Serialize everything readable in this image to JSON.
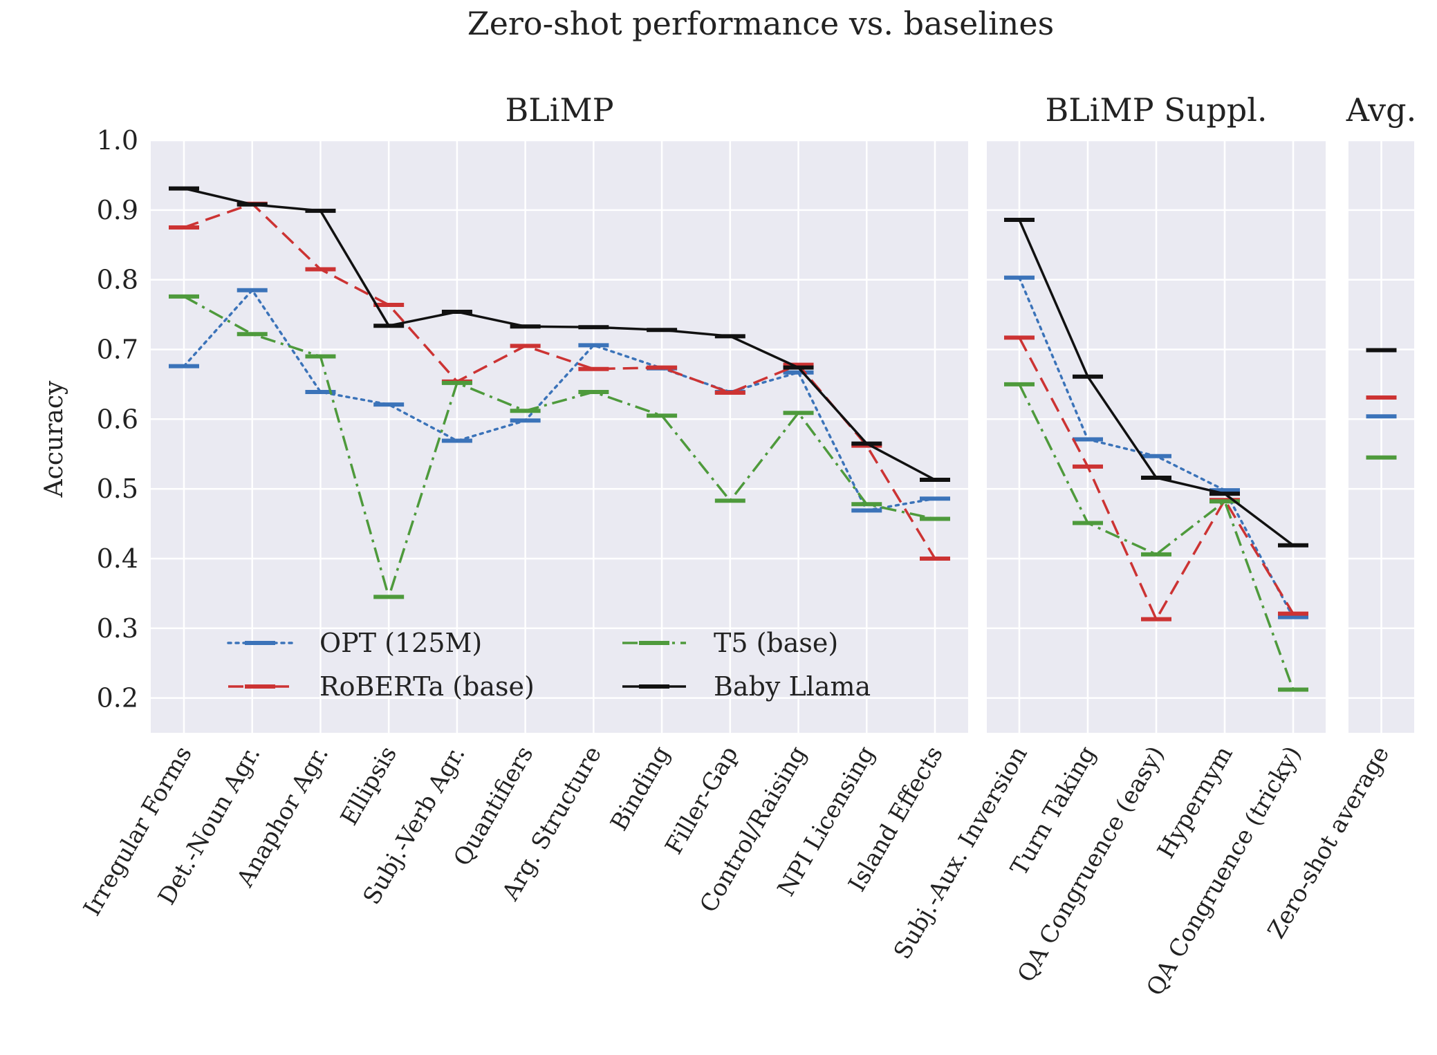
{
  "chart_data": {
    "type": "line",
    "title": "Zero-shot performance vs. baselines",
    "ylabel": "Accuracy",
    "ylim": [
      0.15,
      1.0
    ],
    "yticks": [
      "1.0",
      "0.9",
      "0.8",
      "0.7",
      "0.6",
      "0.5",
      "0.4",
      "0.3",
      "0.2"
    ],
    "legend": {
      "placement": "lower-left",
      "entries": [
        "OPT (125M)",
        "RoBERTa (base)",
        "T5 (base)",
        "Baby Llama"
      ]
    },
    "series_styles": [
      {
        "name": "OPT (125M)",
        "color": "#3b73b9",
        "dash": "dotted"
      },
      {
        "name": "RoBERTa (base)",
        "color": "#cc3333",
        "dash": "dashed"
      },
      {
        "name": "T5 (base)",
        "color": "#4e9a3c",
        "dash": "dashdot"
      },
      {
        "name": "Baby Llama",
        "color": "#111111",
        "dash": "solid"
      }
    ],
    "panels": [
      {
        "title": "BLiMP",
        "categories": [
          "Irregular Forms",
          "Det.-Noun Agr.",
          "Anaphor Agr.",
          "Ellipsis",
          "Subj.-Verb Agr.",
          "Quantifiers",
          "Arg. Structure",
          "Binding",
          "Filler-Gap",
          "Control/Raising",
          "NPI Licensing",
          "Island Effects"
        ],
        "series": [
          {
            "name": "OPT (125M)",
            "values": [
              0.676,
              0.785,
              0.639,
              0.621,
              0.569,
              0.598,
              0.706,
              0.673,
              0.639,
              0.667,
              0.469,
              0.486
            ]
          },
          {
            "name": "RoBERTa (base)",
            "values": [
              0.875,
              0.909,
              0.815,
              0.764,
              0.654,
              0.705,
              0.672,
              0.674,
              0.638,
              0.678,
              0.562,
              0.4
            ]
          },
          {
            "name": "T5 (base)",
            "values": [
              0.776,
              0.722,
              0.69,
              0.345,
              0.652,
              0.612,
              0.639,
              0.605,
              0.483,
              0.609,
              0.478,
              0.457
            ]
          },
          {
            "name": "Baby Llama",
            "values": [
              0.931,
              0.908,
              0.899,
              0.734,
              0.754,
              0.733,
              0.732,
              0.728,
              0.719,
              0.674,
              0.565,
              0.513
            ]
          }
        ]
      },
      {
        "title": "BLiMP Suppl.",
        "categories": [
          "Subj.-Aux. Inversion",
          "Turn Taking",
          "QA Congruence (easy)",
          "Hypernym",
          "QA Congruence (tricky)"
        ],
        "series": [
          {
            "name": "OPT (125M)",
            "values": [
              0.803,
              0.571,
              0.547,
              0.498,
              0.316
            ]
          },
          {
            "name": "RoBERTa (base)",
            "values": [
              0.717,
              0.532,
              0.313,
              0.484,
              0.321
            ]
          },
          {
            "name": "T5 (base)",
            "values": [
              0.65,
              0.451,
              0.406,
              0.482,
              0.212
            ]
          },
          {
            "name": "Baby Llama",
            "values": [
              0.886,
              0.661,
              0.516,
              0.493,
              0.419
            ]
          }
        ]
      },
      {
        "title": "Avg.",
        "categories": [
          "Zero-shot average"
        ],
        "series": [
          {
            "name": "OPT (125M)",
            "values": [
              0.604
            ]
          },
          {
            "name": "RoBERTa (base)",
            "values": [
              0.631
            ]
          },
          {
            "name": "T5 (base)",
            "values": [
              0.545
            ]
          },
          {
            "name": "Baby Llama",
            "values": [
              0.699
            ]
          }
        ]
      }
    ]
  }
}
